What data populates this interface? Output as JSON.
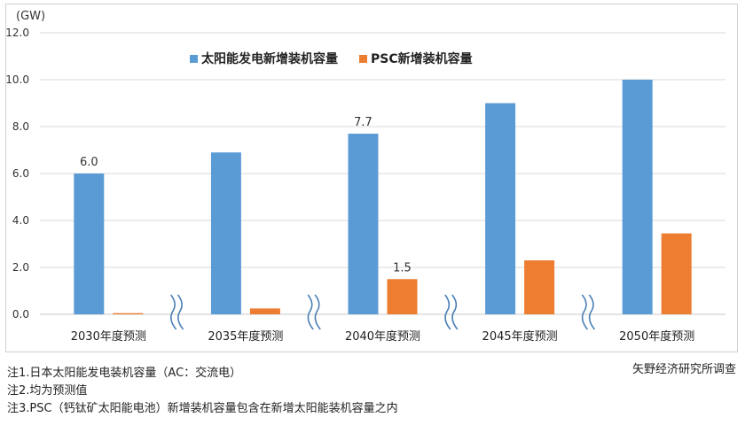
{
  "chart_data": {
    "type": "bar",
    "unit_label": "(GW)",
    "categories": [
      "2030年度预测",
      "2035年度预测",
      "2040年度预测",
      "2045年度预测",
      "2050年度预测"
    ],
    "series": [
      {
        "name": "太阳能发电新增装机容量",
        "color": "#5b9bd5",
        "values": [
          6.0,
          6.9,
          7.7,
          9.0,
          10.0
        ]
      },
      {
        "name": "PSC新增装机容量",
        "color": "#ed7d31",
        "values": [
          0.05,
          0.25,
          1.5,
          2.3,
          3.45
        ]
      }
    ],
    "data_labels": [
      {
        "series": 0,
        "index": 0,
        "text": "6.0"
      },
      {
        "series": 0,
        "index": 2,
        "text": "7.7"
      },
      {
        "series": 1,
        "index": 2,
        "text": "1.5"
      }
    ],
    "yticks": [
      "0.0",
      "2.0",
      "4.0",
      "6.0",
      "8.0",
      "10.0",
      "12.0"
    ],
    "ylim": [
      0,
      12
    ],
    "grid": true,
    "legend_position": "top-center",
    "axis_break_marks": true
  },
  "source": "矢野经济研究所调查",
  "notes": [
    "注1.日本太阳能发电装机容量（AC：交流电）",
    "注2.均为预测值",
    "注3.PSC（钙钛矿太阳能电池）新增装机容量包含在新增太阳能装机容量之内"
  ]
}
